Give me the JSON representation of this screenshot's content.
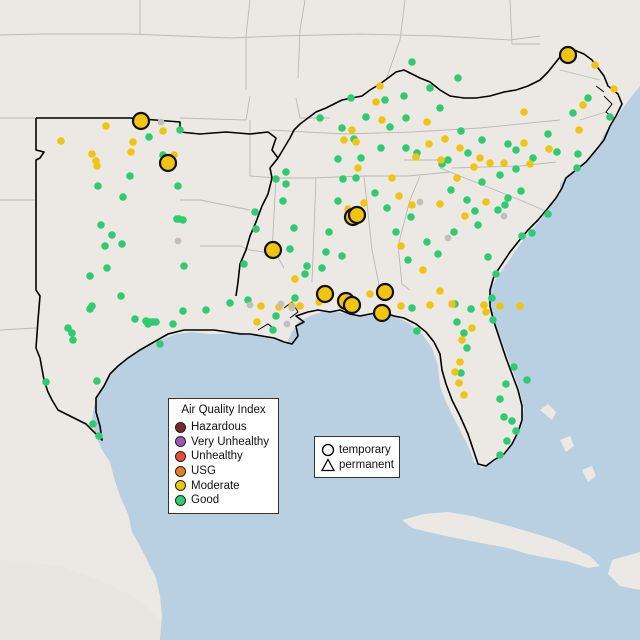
{
  "colors": {
    "water": "#b9d0e3",
    "land": "#ece8e4",
    "land_alt": "#e7e3df",
    "state_line": "#b9b9b9",
    "outline": "#000000",
    "good": "#2ecc71",
    "moderate": "#f1c40f",
    "usg": "#e67e22",
    "unhealthy": "#e74c3c",
    "very_unhealthy": "#9b59b6",
    "hazardous": "#7b2a2a",
    "no_data": "#bfbfbf"
  },
  "legend": {
    "title": "Air Quality Index",
    "items": [
      {
        "label": "Hazardous",
        "color": "#7b2a2a"
      },
      {
        "label": "Very Unhealthy",
        "color": "#9b59b6"
      },
      {
        "label": "Unhealthy",
        "color": "#e74c3c"
      },
      {
        "label": "USG",
        "color": "#e67e22"
      },
      {
        "label": "Moderate",
        "color": "#f1c40f"
      },
      {
        "label": "Good",
        "color": "#2ecc71"
      }
    ]
  },
  "shape_legend": {
    "temporary": "temporary",
    "permanent": "permanent"
  },
  "monitors": {
    "good": [
      [
        412,
        62
      ],
      [
        458,
        78
      ],
      [
        430,
        88
      ],
      [
        385,
        100
      ],
      [
        404,
        96
      ],
      [
        351,
        98
      ],
      [
        366,
        117
      ],
      [
        342,
        128
      ],
      [
        354,
        139
      ],
      [
        406,
        118
      ],
      [
        390,
        127
      ],
      [
        320,
        118
      ],
      [
        381,
        148
      ],
      [
        338,
        159
      ],
      [
        361,
        158
      ],
      [
        356,
        178
      ],
      [
        440,
        108
      ],
      [
        461,
        131
      ],
      [
        482,
        140
      ],
      [
        468,
        153
      ],
      [
        508,
        144
      ],
      [
        516,
        150
      ],
      [
        548,
        134
      ],
      [
        557,
        152
      ],
      [
        578,
        154
      ],
      [
        588,
        98
      ],
      [
        573,
        113
      ],
      [
        610,
        117
      ],
      [
        533,
        158
      ],
      [
        516,
        169
      ],
      [
        500,
        175
      ],
      [
        482,
        182
      ],
      [
        448,
        160
      ],
      [
        417,
        153
      ],
      [
        442,
        164
      ],
      [
        406,
        148
      ],
      [
        451,
        190
      ],
      [
        467,
        200
      ],
      [
        548,
        214
      ],
      [
        498,
        210
      ],
      [
        522,
        236
      ],
      [
        532,
        233
      ],
      [
        488,
        257
      ],
      [
        496,
        274
      ],
      [
        475,
        211
      ],
      [
        478,
        225
      ],
      [
        454,
        232
      ],
      [
        505,
        205
      ],
      [
        577,
        168
      ],
      [
        521,
        191
      ],
      [
        508,
        198
      ],
      [
        438,
        254
      ],
      [
        427,
        242
      ],
      [
        411,
        217
      ],
      [
        408,
        260
      ],
      [
        387,
        208
      ],
      [
        396,
        232
      ],
      [
        375,
        193
      ],
      [
        343,
        179
      ],
      [
        338,
        201
      ],
      [
        329,
        232
      ],
      [
        326,
        252
      ],
      [
        342,
        256
      ],
      [
        322,
        268
      ],
      [
        307,
        266
      ],
      [
        305,
        274
      ],
      [
        290,
        249
      ],
      [
        294,
        228
      ],
      [
        283,
        201
      ],
      [
        276,
        179
      ],
      [
        286,
        184
      ],
      [
        286,
        172
      ],
      [
        255,
        212
      ],
      [
        256,
        229
      ],
      [
        244,
        264
      ],
      [
        248,
        300
      ],
      [
        276,
        316
      ],
      [
        273,
        330
      ],
      [
        295,
        298
      ],
      [
        179,
        219
      ],
      [
        178,
        186
      ],
      [
        163,
        155
      ],
      [
        149,
        137
      ],
      [
        130,
        176
      ],
      [
        98,
        186
      ],
      [
        123,
        197
      ],
      [
        101,
        225
      ],
      [
        105,
        246
      ],
      [
        122,
        244
      ],
      [
        90,
        276
      ],
      [
        107,
        268
      ],
      [
        121,
        296
      ],
      [
        92,
        306
      ],
      [
        90,
        309
      ],
      [
        68,
        328
      ],
      [
        72,
        333
      ],
      [
        73,
        340
      ],
      [
        135,
        319
      ],
      [
        146,
        321
      ],
      [
        148,
        324
      ],
      [
        153,
        322
      ],
      [
        156,
        322
      ],
      [
        173,
        324
      ],
      [
        183,
        311
      ],
      [
        206,
        310
      ],
      [
        230,
        303
      ],
      [
        184,
        266
      ],
      [
        97,
        381
      ],
      [
        93,
        424
      ],
      [
        99,
        436
      ],
      [
        160,
        344
      ],
      [
        46,
        382
      ],
      [
        467,
        348
      ],
      [
        464,
        333
      ],
      [
        493,
        320
      ],
      [
        492,
        298
      ],
      [
        471,
        309
      ],
      [
        514,
        367
      ],
      [
        506,
        384
      ],
      [
        500,
        399
      ],
      [
        504,
        417
      ],
      [
        512,
        421
      ],
      [
        516,
        431
      ],
      [
        507,
        441
      ],
      [
        500,
        455
      ],
      [
        455,
        304
      ],
      [
        457,
        322
      ],
      [
        461,
        373
      ],
      [
        527,
        380
      ],
      [
        412,
        308
      ],
      [
        417,
        331
      ],
      [
        180,
        130
      ],
      [
        183,
        220
      ],
      [
        177,
        219
      ],
      [
        112,
        235
      ],
      [
        150,
        322
      ]
    ],
    "moderate": [
      [
        595,
        65
      ],
      [
        614,
        89
      ],
      [
        380,
        86
      ],
      [
        376,
        102
      ],
      [
        382,
        120
      ],
      [
        352,
        130
      ],
      [
        344,
        140
      ],
      [
        356,
        142
      ],
      [
        358,
        168
      ],
      [
        427,
        122
      ],
      [
        445,
        139
      ],
      [
        460,
        148
      ],
      [
        429,
        144
      ],
      [
        416,
        157
      ],
      [
        441,
        160
      ],
      [
        480,
        158
      ],
      [
        474,
        167
      ],
      [
        490,
        163
      ],
      [
        504,
        163
      ],
      [
        524,
        143
      ],
      [
        530,
        164
      ],
      [
        486,
        202
      ],
      [
        465,
        216
      ],
      [
        412,
        205
      ],
      [
        440,
        204
      ],
      [
        457,
        178
      ],
      [
        392,
        178
      ],
      [
        399,
        196
      ],
      [
        364,
        203
      ],
      [
        348,
        209
      ],
      [
        401,
        246
      ],
      [
        423,
        270
      ],
      [
        440,
        291
      ],
      [
        452,
        304
      ],
      [
        484,
        305
      ],
      [
        486,
        312
      ],
      [
        472,
        328
      ],
      [
        462,
        340
      ],
      [
        460,
        362
      ],
      [
        455,
        372
      ],
      [
        459,
        383
      ],
      [
        464,
        395
      ],
      [
        500,
        306
      ],
      [
        520,
        306
      ],
      [
        524,
        112
      ],
      [
        549,
        149
      ],
      [
        579,
        130
      ],
      [
        583,
        105
      ],
      [
        295,
        279
      ],
      [
        261,
        306
      ],
      [
        257,
        322
      ],
      [
        279,
        307
      ],
      [
        292,
        306
      ],
      [
        300,
        306
      ],
      [
        319,
        302
      ],
      [
        330,
        294
      ],
      [
        370,
        294
      ],
      [
        388,
        296
      ],
      [
        401,
        306
      ],
      [
        430,
        305
      ],
      [
        163,
        131
      ],
      [
        133,
        142
      ],
      [
        131,
        152
      ],
      [
        106,
        126
      ],
      [
        61,
        141
      ],
      [
        92,
        154
      ],
      [
        96,
        161
      ],
      [
        97,
        166
      ],
      [
        174,
        155
      ]
    ],
    "no_data": [
      [
        161,
        122
      ],
      [
        178,
        241
      ],
      [
        292,
        308
      ],
      [
        287,
        324
      ],
      [
        281,
        304
      ],
      [
        250,
        305
      ],
      [
        420,
        202
      ],
      [
        504,
        216
      ],
      [
        448,
        238
      ]
    ],
    "temporary_moderate": [
      [
        568,
        55
      ],
      [
        141,
        121
      ],
      [
        168,
        163
      ],
      [
        273,
        250
      ],
      [
        353,
        217
      ],
      [
        357,
        215
      ],
      [
        325,
        294
      ],
      [
        346,
        301
      ],
      [
        352,
        305
      ],
      [
        385,
        292
      ],
      [
        382,
        313
      ]
    ]
  }
}
